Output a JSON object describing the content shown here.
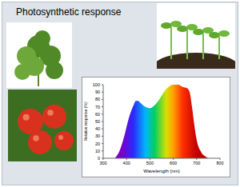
{
  "chart_data": {
    "type": "area",
    "title": "Photosynthetic response",
    "x_label": "Wavelength (nm)",
    "y_label": "Relative response (%)",
    "x": [
      350,
      370,
      390,
      410,
      430,
      440,
      450,
      460,
      480,
      500,
      520,
      540,
      560,
      580,
      600,
      620,
      640,
      660,
      670,
      680,
      690,
      700,
      720,
      740,
      750
    ],
    "values": [
      0,
      10,
      30,
      55,
      72,
      78,
      78,
      75,
      70,
      68,
      72,
      80,
      90,
      97,
      100,
      100,
      97,
      95,
      90,
      70,
      45,
      25,
      8,
      2,
      0
    ],
    "xlim": [
      300,
      800
    ],
    "xticks": [
      300,
      400,
      500,
      600,
      700,
      800
    ],
    "ylim": [
      0,
      100
    ],
    "yticks": [
      0,
      10,
      20,
      30,
      40,
      50,
      60,
      70,
      80,
      90,
      100
    ],
    "grid": false
  }
}
